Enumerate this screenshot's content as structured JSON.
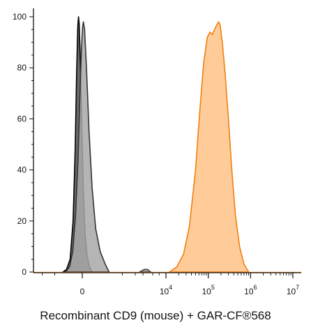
{
  "chart_data": {
    "type": "area",
    "title": "",
    "xlabel": "Recombinant CD9 (mouse) + GAR-CF®568",
    "ylabel": "",
    "x_scale": "biexponential",
    "ylim": [
      0,
      100
    ],
    "y_ticks": [
      0,
      20,
      40,
      60,
      80,
      100
    ],
    "x_ticks": [
      {
        "value": 0,
        "base": "0",
        "exp": ""
      },
      {
        "value": 10000,
        "base": "10",
        "exp": "4"
      },
      {
        "value": 100000,
        "base": "10",
        "exp": "5"
      },
      {
        "value": 1000000,
        "base": "10",
        "exp": "6"
      },
      {
        "value": 10000000,
        "base": "10",
        "exp": "7"
      }
    ],
    "grid": false,
    "series": [
      {
        "style": {
          "fill": "#3a3a3a",
          "fill_opacity": 0.75,
          "stroke": "#000000"
        },
        "points": [
          [
            -300,
            0
          ],
          [
            -230,
            1
          ],
          [
            -170,
            5
          ],
          [
            -125,
            20
          ],
          [
            -95,
            48
          ],
          [
            -75,
            78
          ],
          [
            -60,
            96
          ],
          [
            -50,
            100
          ],
          [
            -40,
            97
          ],
          [
            -25,
            82
          ],
          [
            -5,
            55
          ],
          [
            15,
            32
          ],
          [
            35,
            16
          ],
          [
            60,
            7
          ],
          [
            95,
            2
          ],
          [
            140,
            0
          ]
        ]
      },
      {
        "style": {
          "fill": "#a8a8a8",
          "fill_opacity": 0.85,
          "stroke": "#333333"
        },
        "points": [
          [
            -250,
            0
          ],
          [
            -180,
            2
          ],
          [
            -130,
            8
          ],
          [
            -90,
            22
          ],
          [
            -55,
            45
          ],
          [
            -30,
            70
          ],
          [
            -10,
            88
          ],
          [
            5,
            96
          ],
          [
            15,
            98
          ],
          [
            30,
            95
          ],
          [
            55,
            80
          ],
          [
            90,
            55
          ],
          [
            135,
            33
          ],
          [
            190,
            17
          ],
          [
            270,
            8
          ],
          [
            380,
            3
          ],
          [
            480,
            0
          ]
        ]
      },
      {
        "style": {
          "fill": "#ffcc99",
          "fill_opacity": 1,
          "stroke": "#f07f10"
        },
        "points": [
          [
            12000,
            0
          ],
          [
            18000,
            2
          ],
          [
            26000,
            7
          ],
          [
            36000,
            18
          ],
          [
            50000,
            40
          ],
          [
            63000,
            63
          ],
          [
            78000,
            82
          ],
          [
            95000,
            92
          ],
          [
            110000,
            94
          ],
          [
            125000,
            93
          ],
          [
            150000,
            96
          ],
          [
            175000,
            98
          ],
          [
            190000,
            97
          ],
          [
            215000,
            90
          ],
          [
            250000,
            78
          ],
          [
            300000,
            60
          ],
          [
            360000,
            40
          ],
          [
            440000,
            22
          ],
          [
            550000,
            10
          ],
          [
            700000,
            3
          ],
          [
            900000,
            0
          ]
        ]
      },
      {
        "style": {
          "fill": "#666666",
          "fill_opacity": 0.6,
          "stroke": "#444444"
        },
        "points": [
          [
            2500,
            0
          ],
          [
            3200,
            1
          ],
          [
            3800,
            1
          ],
          [
            4500,
            0
          ]
        ]
      }
    ]
  }
}
